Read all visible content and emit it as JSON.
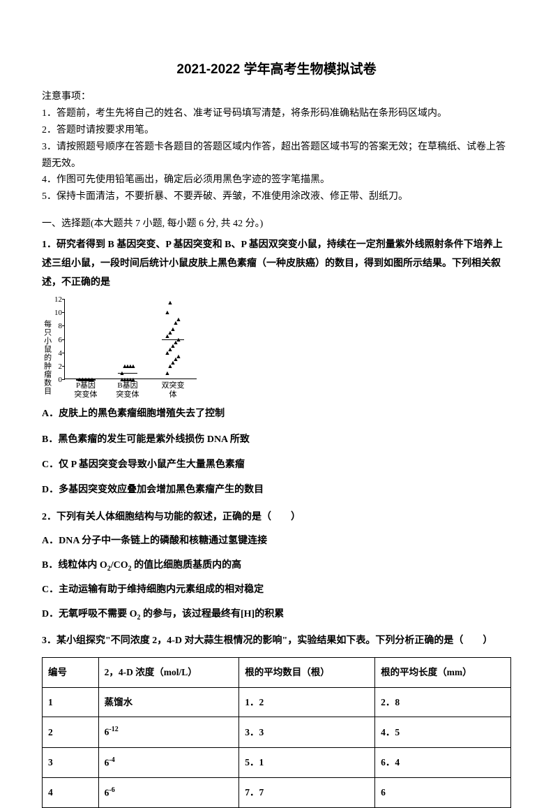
{
  "title": "2021-2022 学年高考生物模拟试卷",
  "instructions_header": "注意事项：",
  "instructions": [
    "1．答题前，考生先将自己的姓名、准考证号码填写清楚，将条形码准确粘贴在条形码区域内。",
    "2．答题时请按要求用笔。",
    "3．请按照题号顺序在答题卡各题目的答题区域内作答，超出答题区域书写的答案无效；在草稿纸、试卷上答题无效。",
    "4．作图可先使用铅笔画出，确定后必须用黑色字迹的签字笔描黑。",
    "5．保持卡面清洁，不要折暴、不要弄破、弄皱，不准使用涂改液、修正带、刮纸刀。"
  ],
  "section1_title": "一、选择题(本大题共 7 小题, 每小题 6 分, 共 42 分。)",
  "q1": {
    "text": "1．研究者得到 B 基因突变、P 基因突变和 B、P 基因双突变小鼠，持续在一定剂量紫外线照射条件下培养上述三组小鼠，一段时间后统计小鼠皮肤上黑色素瘤（一种皮肤癌）的数目，得到如图所示结果。下列相关叙述，不正确的是",
    "options": {
      "A": "A．皮肤上的黑色素瘤细胞增殖失去了控制",
      "B": "B．黑色素瘤的发生可能是紫外线损伤 DNA 所致",
      "C": "C．仅 P 基因突变会导致小鼠产生大量黑色素瘤",
      "D": "D．多基因突变效应叠加会增加黑色素瘤产生的数目"
    }
  },
  "chart": {
    "ylabel": "每只小鼠的肿瘤数目",
    "yticks": [
      "0",
      "2",
      "4",
      "6",
      "8",
      "10",
      "12"
    ],
    "xlabels": [
      "P基因\n突变体",
      "B基因\n突变体",
      "双突变体"
    ],
    "x_positions": [
      30,
      90,
      155
    ],
    "series1_y": [
      0,
      0,
      0,
      0,
      0,
      0,
      0,
      0,
      0,
      0
    ],
    "series2_y": [
      0,
      0,
      0,
      0,
      0,
      1,
      2,
      2,
      2,
      2
    ],
    "series3_y": [
      1,
      2,
      2.5,
      3,
      3.5,
      4,
      4.5,
      5,
      5.5,
      6,
      6.5,
      7,
      7.5,
      8.5,
      9,
      10,
      11.5
    ],
    "mean1": 0,
    "mean2": 1,
    "mean3": 6
  },
  "q2": {
    "text": "2．下列有关人体细胞结构与功能的叙述，正确的是（　　）",
    "options": {
      "A": "A．DNA 分子中一条链上的磷酸和核糖通过氢键连接",
      "B_pre": "B．线粒体内 O",
      "B_sub1": "2",
      "B_mid": "/CO",
      "B_sub2": "2",
      "B_post": " 的值比细胞质基质内的高",
      "C": "C．主动运输有助于维持细胞内元素组成的相对稳定",
      "D_pre": "D．无氧呼吸不需要 O",
      "D_sub": "2",
      "D_post": " 的参与，该过程最终有[H]的积累"
    }
  },
  "q3": {
    "text": "3．某小组探究\"不同浓度 2，4-D 对大蒜生根情况的影响\"，实验结果如下表。下列分析正确的是（　　）",
    "table": {
      "headers": [
        "编号",
        "2，4-D 浓度（mol/L）",
        "根的平均数目（根）",
        "根的平均长度（mm）"
      ],
      "rows": [
        [
          "1",
          "蒸馏水",
          "1．2",
          "2．8"
        ],
        [
          "2",
          {
            "base": "6",
            "sup": "-12"
          },
          "3．3",
          "4．5"
        ],
        [
          "3",
          {
            "base": "6",
            "sup": "-4"
          },
          "5．1",
          "6．4"
        ],
        [
          "4",
          {
            "base": "6",
            "sup": "-6"
          },
          "7．7",
          "6"
        ]
      ]
    }
  }
}
